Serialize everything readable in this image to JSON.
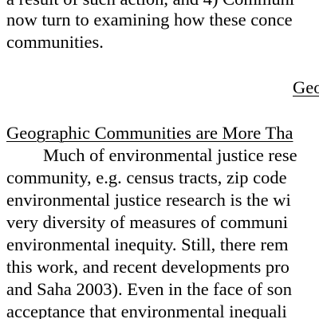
{
  "document": {
    "top_paragraph": {
      "lines": [
        "a result of such action, and 4) Communi",
        "now turn to examining how these conce",
        "communities."
      ]
    },
    "section_heading": "Geo",
    "subsection_heading": "Geographic Communities are More Tha",
    "body_paragraph": {
      "lines": [
        "Much of environmental justice rese",
        "community, e.g. census tracts, zip code",
        "environmental justice research is the wi",
        "very diversity of measures of communi",
        "environmental inequity. Still, there rem",
        "this work, and recent developments pro",
        "and Saha 2003). Even in the face of son",
        "acceptance that environmental inequali"
      ]
    }
  }
}
